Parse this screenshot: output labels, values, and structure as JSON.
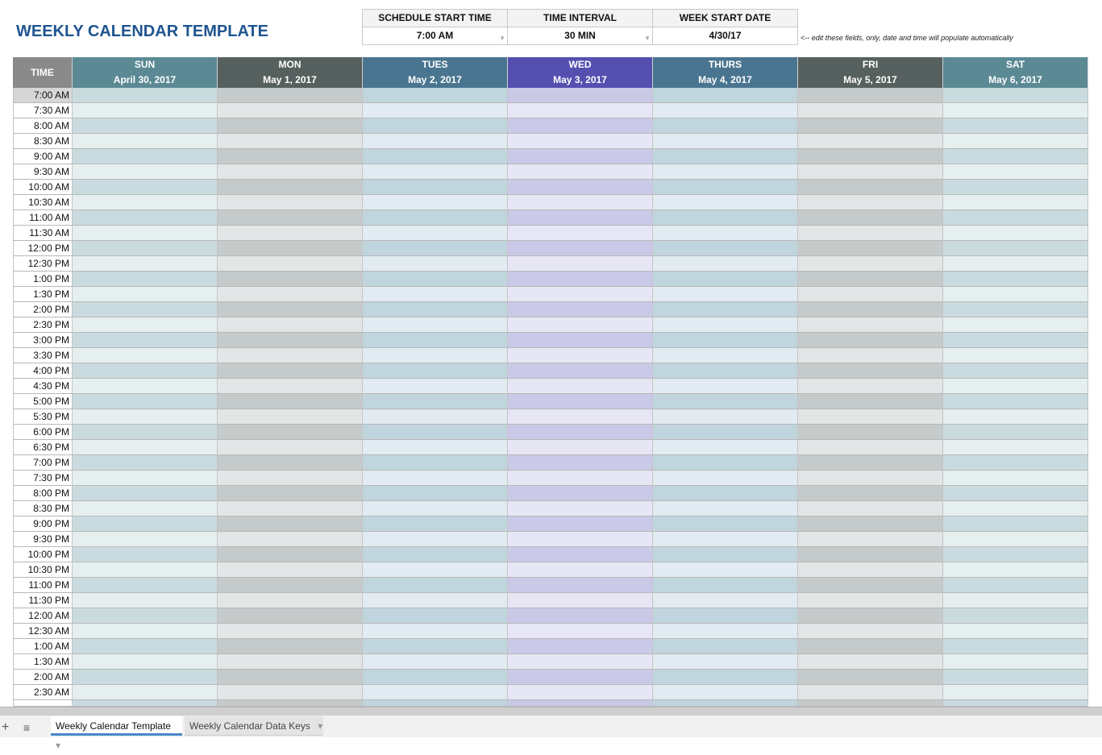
{
  "title": "WEEKLY CALENDAR TEMPLATE",
  "settings": {
    "headers": [
      "SCHEDULE START TIME",
      "TIME INTERVAL",
      "WEEK START DATE"
    ],
    "values": [
      "7:00 AM",
      "30 MIN",
      "4/30/17"
    ]
  },
  "note": "<-- edit these fields, only, date and time will populate automatically",
  "table": {
    "time_header": "TIME",
    "days": [
      {
        "name": "SUN",
        "date": "April 30, 2017"
      },
      {
        "name": "MON",
        "date": "May 1, 2017"
      },
      {
        "name": "TUES",
        "date": "May 2, 2017"
      },
      {
        "name": "WED",
        "date": "May 3, 2017"
      },
      {
        "name": "THURS",
        "date": "May 4, 2017"
      },
      {
        "name": "FRI",
        "date": "May 5, 2017"
      },
      {
        "name": "SAT",
        "date": "May 6, 2017"
      }
    ],
    "times": [
      "7:00 AM",
      "7:30 AM",
      "8:00 AM",
      "8:30 AM",
      "9:00 AM",
      "9:30 AM",
      "10:00 AM",
      "10:30 AM",
      "11:00 AM",
      "11:30 AM",
      "12:00 PM",
      "12:30 PM",
      "1:00 PM",
      "1:30 PM",
      "2:00 PM",
      "2:30 PM",
      "3:00 PM",
      "3:30 PM",
      "4:00 PM",
      "4:30 PM",
      "5:00 PM",
      "5:30 PM",
      "6:00 PM",
      "6:30 PM",
      "7:00 PM",
      "7:30 PM",
      "8:00 PM",
      "8:30 PM",
      "9:00 PM",
      "9:30 PM",
      "10:00 PM",
      "10:30 PM",
      "11:00 PM",
      "11:30 PM",
      "12:00 AM",
      "12:30 AM",
      "1:00 AM",
      "1:30 AM",
      "2:00 AM",
      "2:30 AM"
    ]
  },
  "tabs": [
    "Weekly Calendar Template",
    "Weekly Calendar Data Keys"
  ]
}
